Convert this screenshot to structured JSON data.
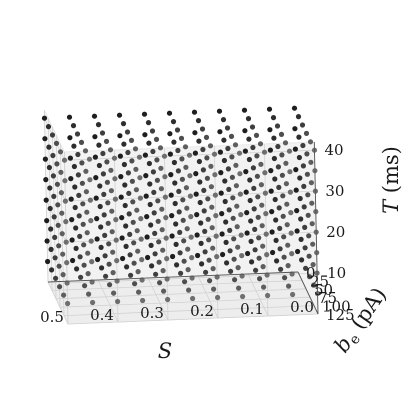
{
  "chart_data": {
    "type": "scatter",
    "projection": "3d",
    "title": "",
    "marker_color": "#111111",
    "pane_color": "#f2f2f2",
    "grid": true,
    "axes": {
      "x": {
        "label": "S",
        "range": [
          0.0,
          0.5
        ],
        "ticks": [
          0.5,
          0.4,
          0.3,
          0.2,
          0.1,
          0.0
        ],
        "tick_labels": [
          "0.5",
          "0.4",
          "0.3",
          "0.2",
          "0.1",
          "0.0"
        ],
        "sample_values": [
          0.0,
          0.05,
          0.1,
          0.15,
          0.2,
          0.25,
          0.3,
          0.35,
          0.4,
          0.45,
          0.5
        ]
      },
      "y": {
        "label_main": "b",
        "label_sub": "e",
        "label_unit": " (pA)",
        "range": [
          0,
          125
        ],
        "ticks": [
          0,
          25,
          50,
          75,
          100,
          125
        ],
        "tick_labels": [
          "0",
          "25",
          "50",
          "75",
          "100",
          "125"
        ],
        "sample_values": [
          0,
          25,
          50,
          75,
          100,
          125
        ]
      },
      "z": {
        "label_main": "T",
        "label_unit": " (ms)",
        "range": [
          0,
          42
        ],
        "ticks": [
          10,
          20,
          30,
          40
        ],
        "tick_labels": [
          "10",
          "20",
          "30",
          "40"
        ],
        "sample_values": [
          5,
          10,
          15,
          20,
          25,
          30,
          35,
          40
        ]
      }
    },
    "points_description_grid": "one point at every combination of x.sample_values, y.sample_values and z.sample_values"
  }
}
